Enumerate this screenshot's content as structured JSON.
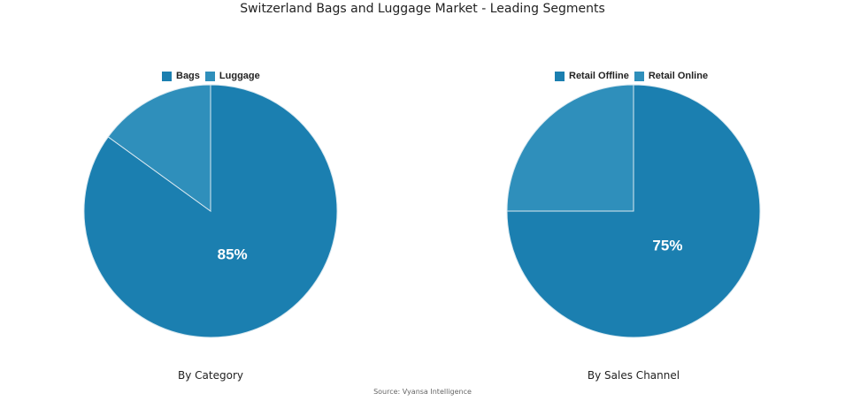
{
  "title": "Switzerland Bags and Luggage Market - Leading Segments",
  "source": "Source: Vyansa Intelligence",
  "colors": {
    "primary": "#1b7fb0",
    "secondary": "#2f8fbb",
    "edge": "#d8e8f0"
  },
  "chart_data": [
    {
      "type": "pie",
      "caption": "By Category",
      "labels": [
        "Bags",
        "Luggage"
      ],
      "values": [
        85,
        15
      ],
      "data_labels": [
        "85%",
        ""
      ],
      "colors": [
        "#1b7fb0",
        "#2f8fbb"
      ],
      "legend": "top"
    },
    {
      "type": "pie",
      "caption": "By Sales Channel",
      "labels": [
        "Retail Offline",
        "Retail Online"
      ],
      "values": [
        75,
        25
      ],
      "data_labels": [
        "75%",
        ""
      ],
      "colors": [
        "#1b7fb0",
        "#2f8fbb"
      ],
      "legend": "top"
    }
  ]
}
